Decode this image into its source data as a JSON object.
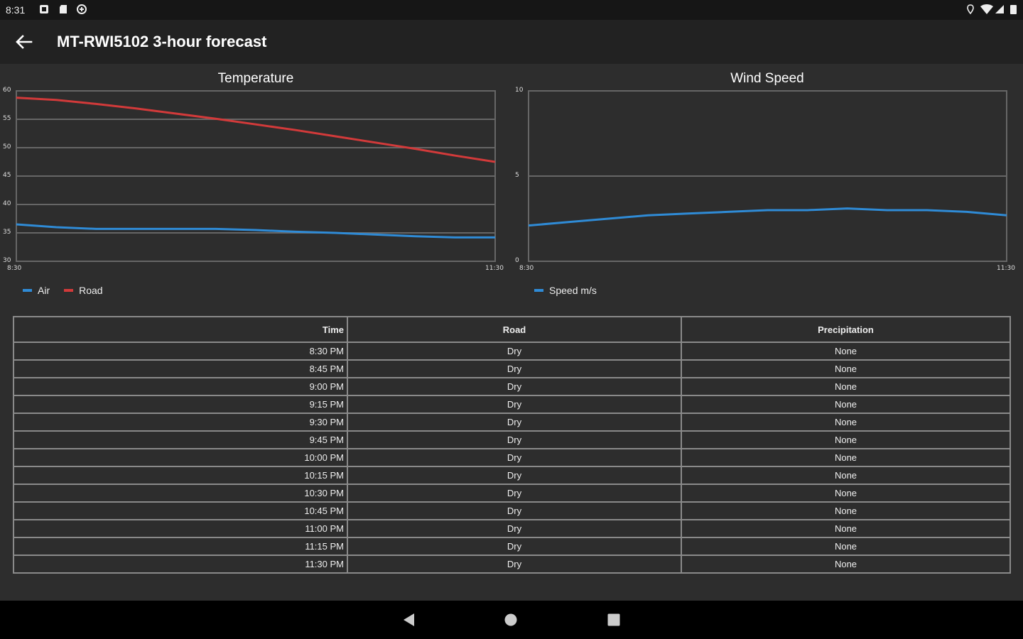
{
  "status": {
    "time": "8:31"
  },
  "appbar": {
    "title": "MT-RWI5102 3-hour forecast"
  },
  "temperature_chart": {
    "title": "Temperature",
    "y_ticks": [
      "60",
      "55",
      "50",
      "45",
      "40",
      "35",
      "30"
    ],
    "x_ticks": [
      "8:30",
      "11:30"
    ],
    "legend": [
      "Air",
      "Road"
    ]
  },
  "wind_chart": {
    "title": "Wind Speed",
    "y_ticks": [
      "10",
      "5",
      "0"
    ],
    "x_ticks": [
      "8:30",
      "11:30"
    ],
    "legend": [
      "Speed m/s"
    ]
  },
  "colors": {
    "air": "#2f8bd6",
    "road": "#d23a3a",
    "wind": "#2f8bd6",
    "grid": "#666666"
  },
  "chart_data": [
    {
      "type": "line",
      "title": "Temperature",
      "x": [
        "8:30 PM",
        "8:45 PM",
        "9:00 PM",
        "9:15 PM",
        "9:30 PM",
        "9:45 PM",
        "10:00 PM",
        "10:15 PM",
        "10:30 PM",
        "10:45 PM",
        "11:00 PM",
        "11:15 PM",
        "11:30 PM"
      ],
      "ylim": [
        30,
        60
      ],
      "grid": true,
      "legend": "bottom-left",
      "series": [
        {
          "name": "Air",
          "values": [
            36.5,
            36.0,
            35.7,
            35.7,
            35.7,
            35.7,
            35.5,
            35.2,
            35.0,
            34.7,
            34.4,
            34.2,
            34.2
          ]
        },
        {
          "name": "Road",
          "values": [
            58.8,
            58.4,
            57.7,
            56.9,
            56.0,
            55.1,
            54.1,
            53.1,
            52.0,
            50.9,
            49.8,
            48.6,
            47.5
          ]
        }
      ]
    },
    {
      "type": "line",
      "title": "Wind Speed",
      "x": [
        "8:30 PM",
        "8:45 PM",
        "9:00 PM",
        "9:15 PM",
        "9:30 PM",
        "9:45 PM",
        "10:00 PM",
        "10:15 PM",
        "10:30 PM",
        "10:45 PM",
        "11:00 PM",
        "11:15 PM",
        "11:30 PM"
      ],
      "ylim": [
        0,
        10
      ],
      "grid": true,
      "legend": "bottom-left",
      "series": [
        {
          "name": "Speed m/s",
          "values": [
            2.1,
            2.3,
            2.5,
            2.7,
            2.8,
            2.9,
            3.0,
            3.0,
            3.1,
            3.0,
            3.0,
            2.9,
            2.7
          ]
        }
      ]
    }
  ],
  "table": {
    "headers": [
      "Time",
      "Road",
      "Precipitation"
    ],
    "rows": [
      [
        "8:30 PM",
        "Dry",
        "None"
      ],
      [
        "8:45 PM",
        "Dry",
        "None"
      ],
      [
        "9:00 PM",
        "Dry",
        "None"
      ],
      [
        "9:15 PM",
        "Dry",
        "None"
      ],
      [
        "9:30 PM",
        "Dry",
        "None"
      ],
      [
        "9:45 PM",
        "Dry",
        "None"
      ],
      [
        "10:00 PM",
        "Dry",
        "None"
      ],
      [
        "10:15 PM",
        "Dry",
        "None"
      ],
      [
        "10:30 PM",
        "Dry",
        "None"
      ],
      [
        "10:45 PM",
        "Dry",
        "None"
      ],
      [
        "11:00 PM",
        "Dry",
        "None"
      ],
      [
        "11:15 PM",
        "Dry",
        "None"
      ],
      [
        "11:30 PM",
        "Dry",
        "None"
      ]
    ]
  },
  "icons": {
    "status_left": [
      "notification-icon",
      "sd-card-icon",
      "sync-icon"
    ],
    "status_right": [
      "location-icon",
      "wifi-icon",
      "signal-icon",
      "battery-icon"
    ],
    "nav": [
      "back-triangle-icon",
      "home-circle-icon",
      "recents-square-icon"
    ]
  }
}
